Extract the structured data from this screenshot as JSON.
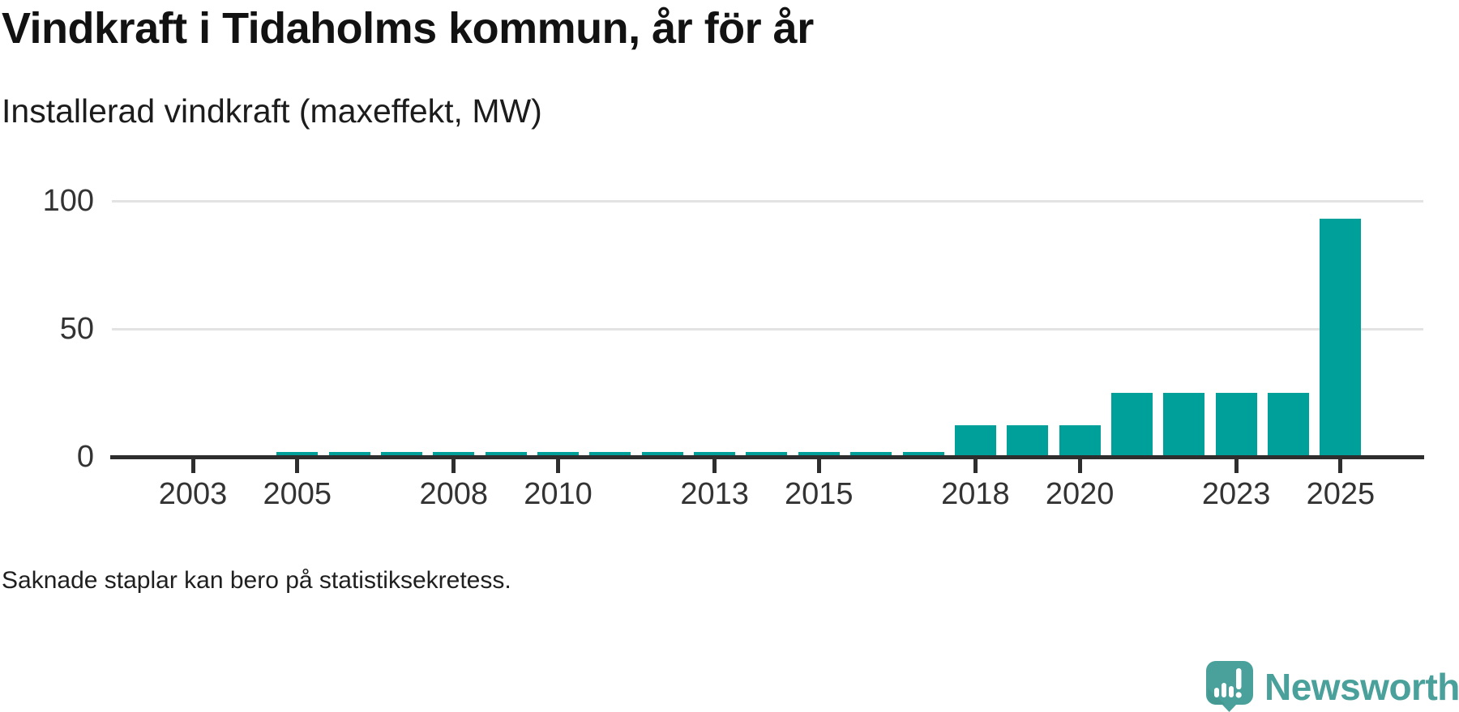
{
  "header": {
    "title": "Vindkraft i Tidaholms kommun, år för år",
    "subtitle": "Installerad vindkraft (maxeffekt, MW)"
  },
  "chart_data": {
    "type": "bar",
    "title": "Vindkraft i Tidaholms kommun, år för år",
    "subtitle_as_ylabel": "Installerad vindkraft (maxeffekt, MW)",
    "unit": "MW",
    "categories": [
      2003,
      2004,
      2005,
      2006,
      2007,
      2008,
      2009,
      2010,
      2011,
      2012,
      2013,
      2014,
      2015,
      2016,
      2017,
      2018,
      2019,
      2020,
      2021,
      2022,
      2023,
      2024,
      2025
    ],
    "values": [
      null,
      null,
      2,
      2,
      2,
      2,
      2,
      2,
      2,
      2,
      2,
      2,
      2,
      2,
      2,
      12.5,
      12.5,
      12.5,
      25,
      25,
      25,
      25,
      93
    ],
    "missing_years": [
      2003,
      2004
    ],
    "x_tick_labels": [
      2003,
      2005,
      2008,
      2010,
      2013,
      2015,
      2018,
      2020,
      2023,
      2025
    ],
    "y_ticks": [
      0,
      50,
      100
    ],
    "ylim": [
      0,
      105
    ],
    "grid": "horizontal",
    "legend": "none",
    "bar_color": "#00a09a",
    "axis_color": "#2e2e2e",
    "grid_color": "#e3e3e3",
    "label_color": "#333333"
  },
  "footnote": {
    "text": "Saknade staplar kan bero på statistiksekretess."
  },
  "logo": {
    "text": "Newsworthy",
    "color": "#4aa09a",
    "icon": "newsworthy-speech-bubble-chart-icon",
    "icon_colors": {
      "bubble": "#4aa09a",
      "shade": "#3d928c",
      "marks": "#ffffff"
    }
  }
}
